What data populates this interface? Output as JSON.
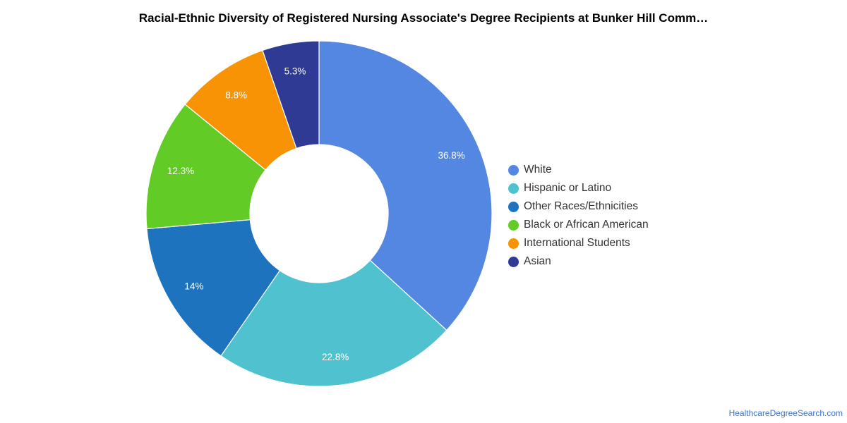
{
  "title": "Racial-Ethnic Diversity of Registered Nursing Associate's Degree Recipients at Bunker Hill Comm…",
  "source": "HealthcareDegreeSearch.com",
  "chart_data": {
    "type": "pie",
    "variant": "donut",
    "title": "Racial-Ethnic Diversity of Registered Nursing Associate's Degree Recipients at Bunker Hill Comm…",
    "legend_placement": "right",
    "slices": [
      {
        "name": "White",
        "value": 36.8,
        "label": "36.8%",
        "color": "#5487e2"
      },
      {
        "name": "Hispanic or Latino",
        "value": 22.8,
        "label": "22.8%",
        "color": "#50c1cf"
      },
      {
        "name": "Other Races/Ethnicities",
        "value": 14,
        "label": "14%",
        "color": "#1e73be"
      },
      {
        "name": "Black or African American",
        "value": 12.3,
        "label": "12.3%",
        "color": "#62cb25"
      },
      {
        "name": "International Students",
        "value": 8.8,
        "label": "8.8%",
        "color": "#f79304"
      },
      {
        "name": "Asian",
        "value": 5.3,
        "label": "5.3%",
        "color": "#2f3a94"
      }
    ]
  }
}
